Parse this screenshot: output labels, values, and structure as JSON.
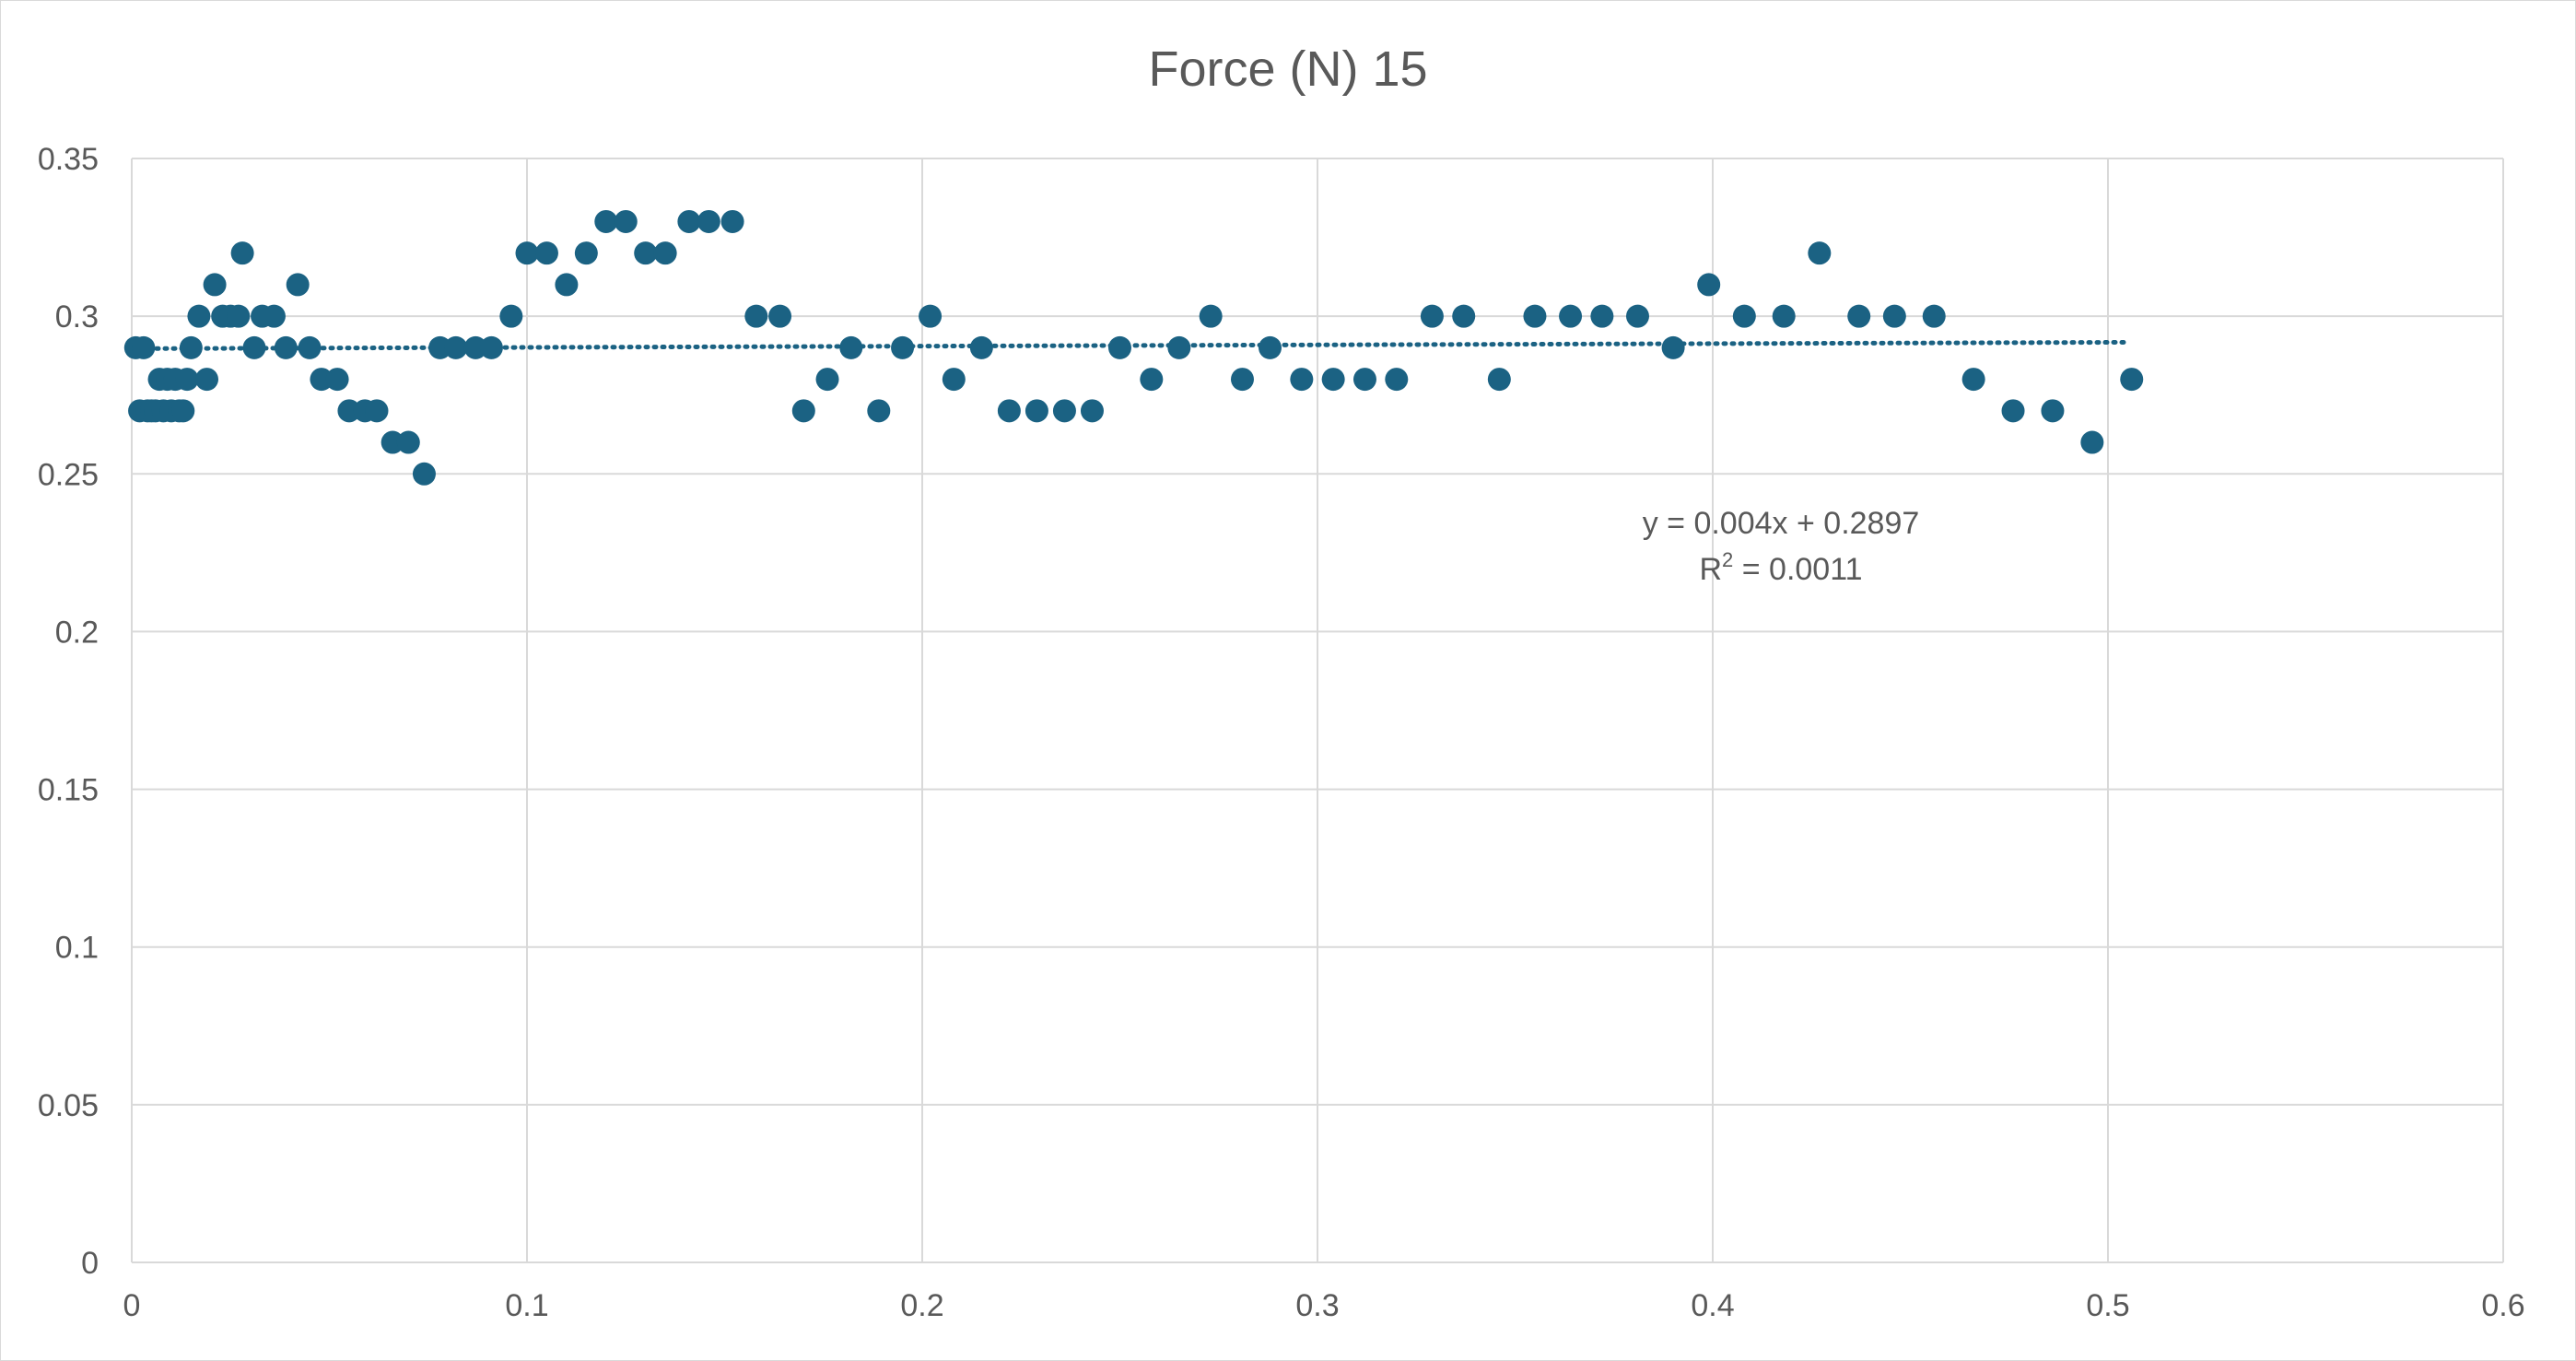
{
  "chart_data": {
    "type": "scatter",
    "title": "Force (N) 15",
    "xlabel": "",
    "ylabel": "",
    "xlim": [
      0,
      0.6
    ],
    "ylim": [
      0,
      0.35
    ],
    "x_ticks": [
      "0",
      "0.1",
      "0.2",
      "0.3",
      "0.4",
      "0.5",
      "0.6"
    ],
    "y_ticks": [
      "0",
      "0.05",
      "0.1",
      "0.15",
      "0.2",
      "0.25",
      "0.3",
      "0.35"
    ],
    "grid": true,
    "legend": "none",
    "marker_color": "#1B6283",
    "trendline": {
      "type": "linear",
      "style": "dotted",
      "color": "#1B6283",
      "slope": 0.004,
      "intercept": 0.2897,
      "x_range": [
        0,
        0.505
      ],
      "equation": "y = 0.004x + 0.2897",
      "r2_prefix": "R",
      "r2_exp": "2",
      "r2_rest": " = 0.0011"
    },
    "series": [
      {
        "x": [
          0.001,
          0.002,
          0.003,
          0.004,
          0.005,
          0.006,
          0.007,
          0.008,
          0.009,
          0.01,
          0.011,
          0.012,
          0.013,
          0.014,
          0.015,
          0.017,
          0.019,
          0.021,
          0.023,
          0.025,
          0.027,
          0.028,
          0.031,
          0.033,
          0.036,
          0.039,
          0.042,
          0.045,
          0.048,
          0.052,
          0.055,
          0.059,
          0.062,
          0.066,
          0.07,
          0.074,
          0.078,
          0.082,
          0.087,
          0.091,
          0.096,
          0.1,
          0.105,
          0.11,
          0.115,
          0.12,
          0.125,
          0.13,
          0.135,
          0.141,
          0.146,
          0.152,
          0.158,
          0.164,
          0.17,
          0.176,
          0.182,
          0.189,
          0.195,
          0.202,
          0.208,
          0.215,
          0.222,
          0.229,
          0.236,
          0.243,
          0.25,
          0.258,
          0.265,
          0.273,
          0.281,
          0.288,
          0.296,
          0.304,
          0.312,
          0.32,
          0.329,
          0.337,
          0.346,
          0.355,
          0.364,
          0.372,
          0.381,
          0.39,
          0.399,
          0.408,
          0.418,
          0.427,
          0.437,
          0.446,
          0.456,
          0.466,
          0.476,
          0.486,
          0.496,
          0.506
        ],
        "y": [
          0.29,
          0.27,
          0.29,
          0.27,
          0.27,
          0.27,
          0.28,
          0.27,
          0.28,
          0.27,
          0.28,
          0.27,
          0.27,
          0.28,
          0.29,
          0.3,
          0.28,
          0.31,
          0.3,
          0.3,
          0.3,
          0.32,
          0.29,
          0.3,
          0.3,
          0.29,
          0.31,
          0.29,
          0.28,
          0.28,
          0.27,
          0.27,
          0.27,
          0.26,
          0.26,
          0.25,
          0.29,
          0.29,
          0.29,
          0.29,
          0.3,
          0.32,
          0.32,
          0.31,
          0.32,
          0.33,
          0.33,
          0.32,
          0.32,
          0.33,
          0.33,
          0.33,
          0.3,
          0.3,
          0.27,
          0.28,
          0.29,
          0.27,
          0.29,
          0.3,
          0.28,
          0.29,
          0.27,
          0.27,
          0.27,
          0.27,
          0.29,
          0.28,
          0.29,
          0.3,
          0.28,
          0.29,
          0.28,
          0.28,
          0.28,
          0.28,
          0.3,
          0.3,
          0.28,
          0.3,
          0.3,
          0.3,
          0.3,
          0.29,
          0.31,
          0.3,
          0.3,
          0.32,
          0.3,
          0.3,
          0.3,
          0.28,
          0.27,
          0.27,
          0.26,
          0.28
        ]
      }
    ]
  }
}
